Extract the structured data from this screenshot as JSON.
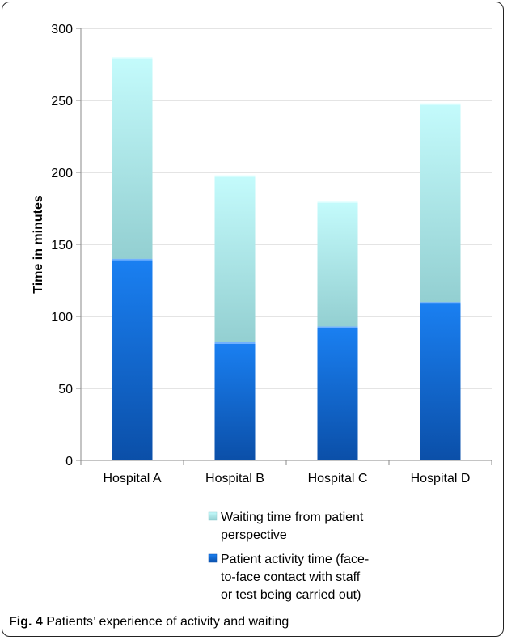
{
  "caption": {
    "label": "Fig. 4",
    "text": "Patients’ experience of activity and waiting"
  },
  "chart_data": {
    "type": "bar",
    "stacked": true,
    "categories": [
      "Hospital A",
      "Hospital B",
      "Hospital C",
      "Hospital D"
    ],
    "series": [
      {
        "name": "Patient activity time (face-to-face contact with staff or test being carried out)",
        "legend_lines": [
          "Patient activity time (face-",
          "to-face contact with staff",
          "or test being carried out)"
        ],
        "values": [
          140,
          82,
          93,
          110
        ],
        "color": "#1f6fd6"
      },
      {
        "name": "Waiting time from patient perspective",
        "legend_lines": [
          "Waiting time from patient",
          "perspective"
        ],
        "values": [
          140,
          116,
          87,
          138
        ],
        "color": "#bff4f5"
      }
    ],
    "ylabel": "Time in minutes",
    "xlabel": "",
    "ylim": [
      0,
      300
    ],
    "yticks": [
      0,
      50,
      100,
      150,
      200,
      250,
      300
    ],
    "grid": true,
    "legend_position": "bottom"
  }
}
